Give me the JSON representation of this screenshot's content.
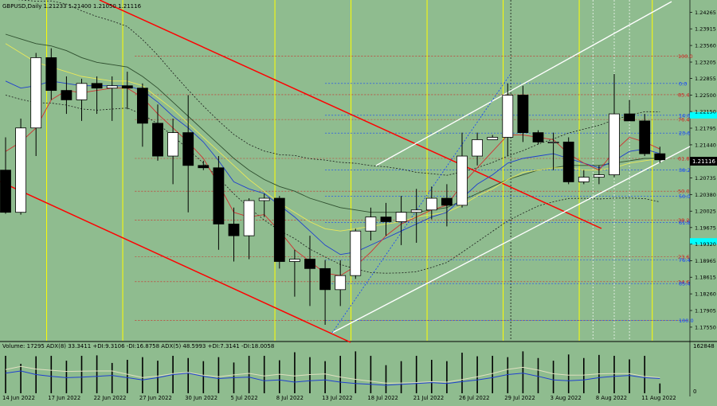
{
  "header": {
    "symbol_line": "GBPUSD,Daily  1.21233 1.21400 1.21050 1.21116"
  },
  "indicator": {
    "label": "Volume: 17295  ADX(8) 33.3411 +DI:9.3106 -DI:16.8758  ADX(5) 48.5993 +DI:7.3141 -DI:18.0058",
    "scale_top": "162848",
    "scale_bottom": "0"
  },
  "current_price_label": "1.21116",
  "colors": {
    "background": "#8fbc8f",
    "bull": "#ffffff",
    "bear": "#000000",
    "channel_down": "#ff0000",
    "channel_up": "#ffffff",
    "fib_red": "#d02020",
    "fib_blue": "#1040ff",
    "session_line": "#ffff00",
    "cyan_marker": "#00ffff"
  },
  "chart_data": {
    "type": "candlestick",
    "title": "GBPUSD,Daily",
    "ylim": [
      1.1726,
      1.2453
    ],
    "y_ticks": [
      "1.24265",
      "1.23915",
      "1.23560",
      "1.23205",
      "1.22855",
      "1.22500",
      "1.22150",
      "1.21795",
      "1.21440",
      "1.21090",
      "1.20735",
      "1.20380",
      "1.20025",
      "1.19675",
      "1.19320",
      "1.18965",
      "1.18615",
      "1.18260",
      "1.17905",
      "1.17550"
    ],
    "x_labels": [
      {
        "i": 0,
        "label": "14 Jun 2022"
      },
      {
        "i": 3,
        "label": "17 Jun 2022"
      },
      {
        "i": 6,
        "label": "22 Jun 2022"
      },
      {
        "i": 9,
        "label": "27 Jun 2022"
      },
      {
        "i": 12,
        "label": "30 Jun 2022"
      },
      {
        "i": 15,
        "label": "5 Jul 2022"
      },
      {
        "i": 18,
        "label": "8 Jul 2022"
      },
      {
        "i": 21,
        "label": "13 Jul 2022"
      },
      {
        "i": 24,
        "label": "18 Jul 2022"
      },
      {
        "i": 27,
        "label": "21 Jul 2022"
      },
      {
        "i": 30,
        "label": "26 Jul 2022"
      },
      {
        "i": 33,
        "label": "29 Jul 2022"
      },
      {
        "i": 36,
        "label": "3 Aug 2022"
      },
      {
        "i": 39,
        "label": "8 Aug 2022"
      },
      {
        "i": 42,
        "label": "11 Aug 2022"
      }
    ],
    "candles": [
      [
        1.209,
        1.216,
        1.1997,
        1.2
      ],
      [
        1.2,
        1.22,
        1.1995,
        1.218
      ],
      [
        1.218,
        1.234,
        1.212,
        1.233
      ],
      [
        1.233,
        1.235,
        1.224,
        1.226
      ],
      [
        1.226,
        1.229,
        1.221,
        1.224
      ],
      [
        1.224,
        1.2285,
        1.2195,
        1.2275
      ],
      [
        1.2275,
        1.229,
        1.221,
        1.2265
      ],
      [
        1.2265,
        1.229,
        1.2195,
        1.227
      ],
      [
        1.227,
        1.23,
        1.222,
        1.2265
      ],
      [
        1.2265,
        1.2275,
        1.214,
        1.219
      ],
      [
        1.219,
        1.223,
        1.211,
        1.212
      ],
      [
        1.212,
        1.22,
        1.206,
        1.217
      ],
      [
        1.217,
        1.225,
        1.2,
        1.21
      ],
      [
        1.21,
        1.211,
        1.209,
        1.2095
      ],
      [
        1.2095,
        1.212,
        1.192,
        1.1975
      ],
      [
        1.1975,
        1.201,
        1.1895,
        1.195
      ],
      [
        1.195,
        1.203,
        1.19,
        1.2025
      ],
      [
        1.2025,
        1.204,
        1.199,
        1.203
      ],
      [
        1.203,
        1.2035,
        1.188,
        1.1895
      ],
      [
        1.1895,
        1.192,
        1.182,
        1.19
      ],
      [
        1.19,
        1.195,
        1.18,
        1.188
      ],
      [
        1.188,
        1.1898,
        1.176,
        1.1835
      ],
      [
        1.1835,
        1.1898,
        1.18,
        1.1865
      ],
      [
        1.1865,
        1.1965,
        1.1858,
        1.196
      ],
      [
        1.196,
        1.201,
        1.194,
        1.199
      ],
      [
        1.199,
        1.202,
        1.195,
        1.198
      ],
      [
        1.198,
        1.2035,
        1.193,
        1.2
      ],
      [
        1.2,
        1.205,
        1.1935,
        1.2005
      ],
      [
        1.2005,
        1.2055,
        1.1985,
        1.203
      ],
      [
        1.203,
        1.206,
        1.197,
        1.2015
      ],
      [
        1.2015,
        1.217,
        1.201,
        1.212
      ],
      [
        1.212,
        1.217,
        1.21,
        1.2155
      ],
      [
        1.2155,
        1.2165,
        1.2155,
        1.216
      ],
      [
        1.216,
        1.2275,
        1.212,
        1.225
      ],
      [
        1.225,
        1.227,
        1.215,
        1.217
      ],
      [
        1.217,
        1.2175,
        1.2145,
        1.215
      ],
      [
        1.215,
        1.217,
        1.209,
        1.215
      ],
      [
        1.215,
        1.216,
        1.206,
        1.2065
      ],
      [
        1.2065,
        1.209,
        1.206,
        1.2075
      ],
      [
        1.2075,
        1.21,
        1.206,
        1.208
      ],
      [
        1.208,
        1.2295,
        1.2075,
        1.221
      ],
      [
        1.221,
        1.224,
        1.2195,
        1.2195
      ],
      [
        1.2195,
        1.221,
        1.212,
        1.2125
      ],
      [
        1.2125,
        1.214,
        1.2105,
        1.2112
      ]
    ],
    "volume": [
      0.84,
      0.66,
      0.83,
      0.84,
      0.73,
      0.84,
      0.85,
      0.68,
      0.75,
      0.81,
      0.73,
      0.84,
      0.79,
      0.72,
      0.81,
      0.69,
      0.84,
      0.84,
      0.74,
      0.92,
      0.81,
      0.72,
      0.84,
      0.94,
      0.84,
      0.63,
      0.72,
      0.84,
      0.75,
      0.72,
      0.91,
      0.83,
      0.84,
      0.81,
      0.94,
      0.79,
      0.73,
      0.87,
      0.79,
      0.86,
      0.84,
      0.76,
      0.84,
      0.22
    ],
    "ma_red": [
      1.213,
      1.215,
      1.218,
      1.224,
      1.226,
      1.2255,
      1.226,
      1.2265,
      1.2265,
      1.2245,
      1.221,
      1.218,
      1.215,
      1.2115,
      1.206,
      1.2,
      1.199,
      1.1995,
      1.196,
      1.192,
      1.1895,
      1.187,
      1.1865,
      1.1885,
      1.1915,
      1.195,
      1.1975,
      1.199,
      1.2005,
      1.2015,
      1.206,
      1.2095,
      1.213,
      1.2165,
      1.2165,
      1.216,
      1.2155,
      1.2125,
      1.2105,
      1.209,
      1.213,
      1.216,
      1.215,
      1.2135
    ],
    "ma_blue": [
      1.228,
      1.2265,
      1.227,
      1.228,
      1.2275,
      1.227,
      1.227,
      1.227,
      1.227,
      1.226,
      1.2235,
      1.2205,
      1.218,
      1.215,
      1.211,
      1.2065,
      1.205,
      1.204,
      1.2015,
      1.199,
      1.196,
      1.193,
      1.191,
      1.1915,
      1.193,
      1.1945,
      1.196,
      1.1975,
      1.199,
      1.2,
      1.203,
      1.206,
      1.208,
      1.2105,
      1.2115,
      1.212,
      1.2125,
      1.2115,
      1.2105,
      1.2095,
      1.211,
      1.213,
      1.2135,
      1.2125
    ],
    "ma_yellow": [
      1.236,
      1.234,
      1.232,
      1.231,
      1.23,
      1.229,
      1.2285,
      1.228,
      1.228,
      1.227,
      1.2245,
      1.222,
      1.219,
      1.216,
      1.213,
      1.21,
      1.207,
      1.2045,
      1.202,
      1.2,
      1.198,
      1.1965,
      1.196,
      1.1965,
      1.197,
      1.1975,
      1.198,
      1.199,
      1.1995,
      1.2,
      1.2015,
      1.2035,
      1.205,
      1.207,
      1.2085,
      1.209,
      1.2095,
      1.2095,
      1.209,
      1.209,
      1.2095,
      1.2105,
      1.211,
      1.2115
    ],
    "ma_dark": [
      1.238,
      1.237,
      1.236,
      1.2355,
      1.2345,
      1.233,
      1.232,
      1.2315,
      1.231,
      1.229,
      1.2265,
      1.2235,
      1.2205,
      1.2175,
      1.2145,
      1.2115,
      1.209,
      1.207,
      1.2055,
      1.2045,
      1.203,
      1.202,
      1.201,
      1.2005,
      1.2,
      1.2,
      1.2,
      1.2,
      1.2005,
      1.201,
      1.2025,
      1.204,
      1.2055,
      1.207,
      1.208,
      1.209,
      1.2095,
      1.21,
      1.21,
      1.21,
      1.2105,
      1.211,
      1.2115,
      1.2115
    ],
    "fib_levels_red": [
      {
        "label": "100.0",
        "price": 1.23335
      },
      {
        "label": "85.4",
        "price": 1.2251
      },
      {
        "label": "76.4",
        "price": 1.2198
      },
      {
        "label": "61.8",
        "price": 1.2115
      },
      {
        "label": "50.0",
        "price": 1.2045
      },
      {
        "label": "38.2",
        "price": 1.1983
      },
      {
        "label": "23.6",
        "price": 1.1905
      },
      {
        "label": "14.6",
        "price": 1.1852
      },
      {
        "label": "",
        "price": 1.1769
      }
    ],
    "fib_levels_blue": [
      {
        "label": "0.0",
        "price": 1.2275
      },
      {
        "label": "14.6",
        "price": 1.2207
      },
      {
        "label": "23.6",
        "price": 1.2169
      },
      {
        "label": "38.2",
        "price": 1.209
      },
      {
        "label": "50.0",
        "price": 1.2034
      },
      {
        "label": "61.8",
        "price": 1.1978
      },
      {
        "label": "76.4",
        "price": 1.1898
      },
      {
        "label": "85.4",
        "price": 1.1848
      },
      {
        "label": "100.0",
        "price": 1.1769
      }
    ]
  }
}
